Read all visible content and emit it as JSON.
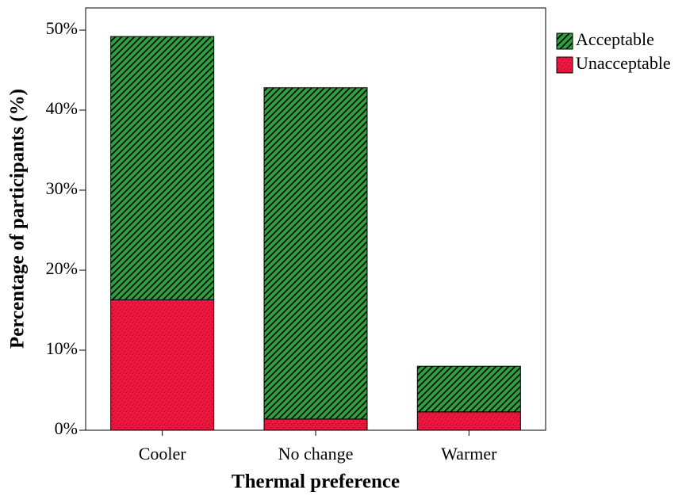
{
  "chart_data": {
    "type": "stacked-bar",
    "x_label": "Thermal preference",
    "y_label": "Percentage of participants (%)",
    "categories": [
      "Cooler",
      "No change",
      "Warmer"
    ],
    "series": [
      {
        "name": "Acceptable",
        "color": "#2e9e3e",
        "values": [
          32.9,
          41.4,
          5.7
        ]
      },
      {
        "name": "Unacceptable",
        "color": "#e8173e",
        "values": [
          16.3,
          1.4,
          2.3
        ]
      }
    ],
    "ylim": [
      0,
      50
    ],
    "yticks": [
      {
        "value": 0,
        "label": "0%"
      },
      {
        "value": 10,
        "label": "10%"
      },
      {
        "value": 20,
        "label": "20%"
      },
      {
        "value": 30,
        "label": "30%"
      },
      {
        "value": 40,
        "label": "40%"
      },
      {
        "value": 50,
        "label": "50%"
      }
    ]
  }
}
